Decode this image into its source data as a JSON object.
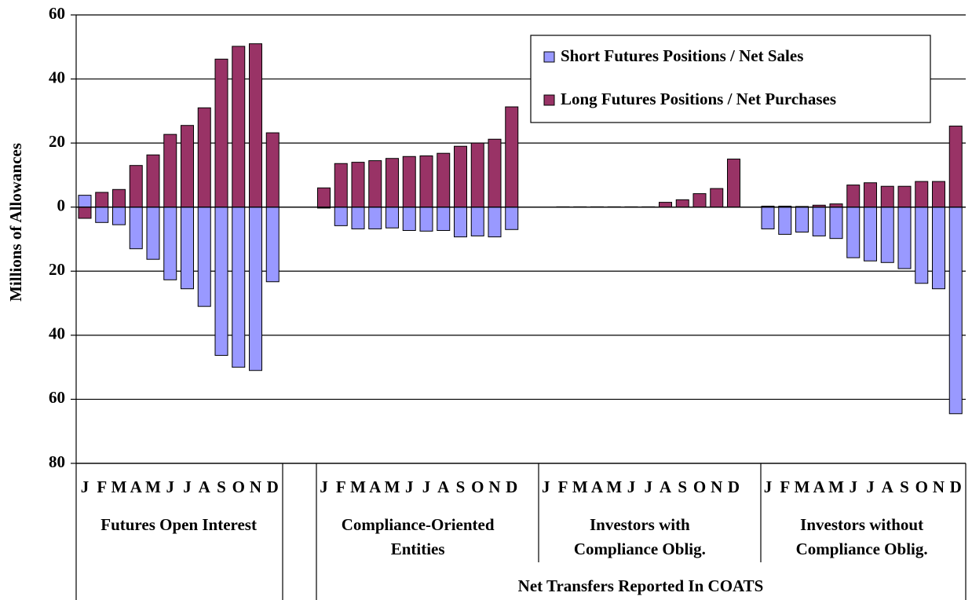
{
  "chart_data": {
    "type": "bar",
    "ylabel": "Millions of Allowances",
    "ylim": [
      -80,
      60
    ],
    "yticks": [
      {
        "value": -80,
        "label": "80"
      },
      {
        "value": -60,
        "label": "60"
      },
      {
        "value": -40,
        "label": "40"
      },
      {
        "value": -20,
        "label": "20"
      },
      0,
      20,
      40,
      60
    ],
    "grid": true,
    "legend": "top-right",
    "categories": [
      "J",
      "F",
      "M",
      "A",
      "M",
      "J",
      "J",
      "A",
      "S",
      "O",
      "N",
      "D",
      "J",
      "F",
      "M",
      "A",
      "M",
      "J",
      "J",
      "A",
      "S",
      "O",
      "N",
      "D",
      "J",
      "F",
      "M",
      "A",
      "M",
      "J",
      "J",
      "A",
      "S",
      "O",
      "N",
      "D",
      "J",
      "F",
      "M",
      "A",
      "M",
      "J",
      "J",
      "A",
      "S",
      "O",
      "N",
      "D"
    ],
    "groups": [
      {
        "label": [
          "Futures Open Interest"
        ]
      },
      {
        "label": [
          "Compliance-Oriented",
          "Entities"
        ]
      },
      {
        "label": [
          "Investors with",
          "Compliance Oblig."
        ]
      },
      {
        "label": [
          "Investors without",
          "Compliance Oblig."
        ]
      }
    ],
    "spanning_label": "Net Transfers Reported In COATS",
    "series": [
      {
        "name": "Short Futures Positions / Net Sales",
        "color": "#9999ff",
        "values": [
          3.7,
          -4.8,
          -5.5,
          -13,
          -16.3,
          -22.7,
          -25.5,
          -31,
          -46.3,
          -50,
          -51,
          -23.3,
          -0.3,
          -5.8,
          -6.8,
          -6.8,
          -6.5,
          -7.3,
          -7.5,
          -7.3,
          -9.3,
          -9,
          -9.3,
          -7,
          0,
          0,
          0,
          0,
          0,
          0,
          0,
          0,
          0,
          0,
          0,
          0,
          -6.8,
          -8.5,
          -7.8,
          -9,
          -9.8,
          -15.8,
          -16.8,
          -17.3,
          -19.2,
          -23.8,
          -25.5,
          -64.5
        ]
      },
      {
        "name": "Long Futures Positions / Net Purchases",
        "color": "#993366",
        "values": [
          -3.5,
          4.6,
          5.5,
          13,
          16.3,
          22.7,
          25.5,
          31,
          46.2,
          50.2,
          51,
          23.2,
          6,
          13.6,
          14,
          14.5,
          15.2,
          15.8,
          16,
          16.8,
          19,
          20,
          21.2,
          31.3,
          0,
          0.1,
          0.1,
          0.1,
          0.1,
          0.1,
          0.1,
          1.5,
          2.3,
          4.2,
          5.8,
          15,
          0.3,
          0.3,
          0.2,
          0.6,
          1,
          6.9,
          7.6,
          6.5,
          6.5,
          8,
          8,
          25.3
        ]
      }
    ]
  }
}
